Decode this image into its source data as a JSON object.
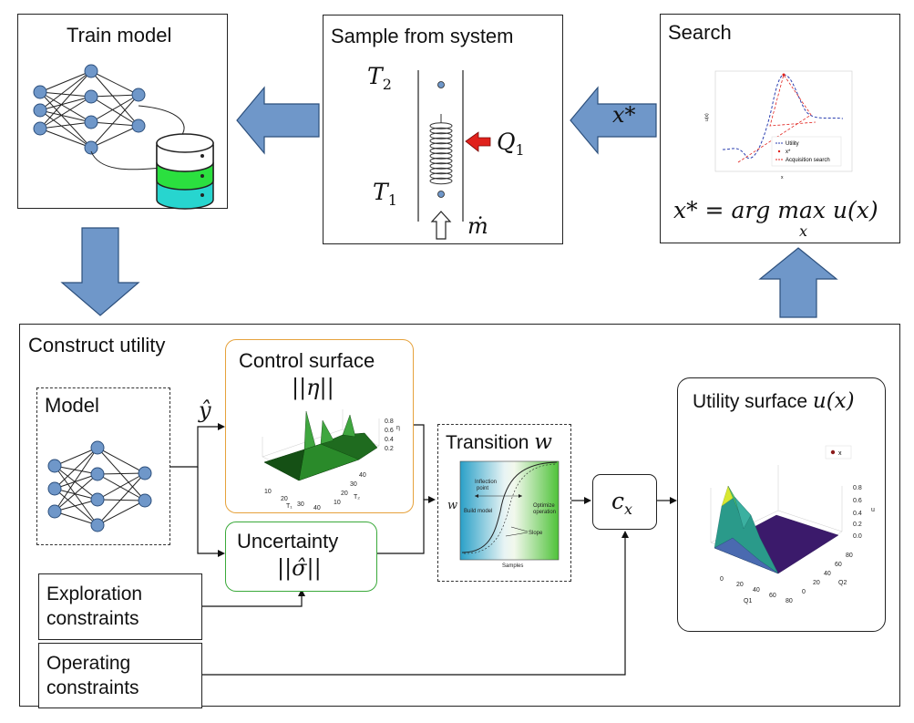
{
  "train": {
    "title": "Train model"
  },
  "sample": {
    "title": "Sample from system",
    "t2": "T",
    "t2_sub": "2",
    "t1": "T",
    "t1_sub": "1",
    "q": "Q",
    "q_sub": "1",
    "mdot": "ṁ"
  },
  "search": {
    "title": "Search",
    "formula_lhs": "x* = arg max",
    "formula_sub": "x",
    "formula_rhs": "u(x)",
    "legend": [
      "Utility",
      "x*",
      "Acquisition search"
    ],
    "ylabel": "u(x)",
    "xlabel": "x"
  },
  "arrow_xstar": "x*",
  "construct": {
    "title": "Construct utility"
  },
  "model": {
    "title": "Model"
  },
  "yhat": "ŷ",
  "control": {
    "title": "Control surface",
    "math": "||η||",
    "z_ticks": [
      "0.8",
      "0.6",
      "0.4",
      "0.2"
    ],
    "z_label": "η",
    "x_ticks": [
      "10",
      "20",
      "30",
      "40"
    ],
    "x_label": "T₁",
    "y_ticks": [
      "40",
      "30",
      "20",
      "10"
    ],
    "y_label": "T₂"
  },
  "uncertainty": {
    "title": "Uncertainty",
    "math": "||σ̂||"
  },
  "transition": {
    "title": "Transition",
    "title_math": "w",
    "w_label": "w",
    "inflection": "Inflection\npoint",
    "build": "Build model",
    "optimize": "Optimize\noperation",
    "slope": "Slope",
    "samples": "Samples"
  },
  "cx": {
    "label": "c",
    "sub": "x"
  },
  "utility": {
    "title": "Utility surface",
    "math": "u(x)",
    "legend": "x",
    "z_ticks": [
      "0.8",
      "0.6",
      "0.4",
      "0.2",
      "0.0"
    ],
    "z_label": "u",
    "x_ticks": [
      "0",
      "20",
      "40",
      "60",
      "80"
    ],
    "x_label": "Q1",
    "y_ticks": [
      "80",
      "60",
      "40",
      "20",
      "0"
    ],
    "y_label": "Q2"
  },
  "exploration": {
    "label": "Exploration\nconstraints"
  },
  "operating": {
    "label": "Operating\nconstraints"
  },
  "colors": {
    "arrow_fill": "#6f97c9",
    "arrow_stroke": "#2c4f7c",
    "node": "#6f97c9",
    "db_top": "#ffffff",
    "db_mid": "#2be03f",
    "db_bot": "#27d5cf",
    "control_border": "#e6a23c",
    "uncert_border": "#3aa93a",
    "q_arrow": "#e0211c"
  }
}
